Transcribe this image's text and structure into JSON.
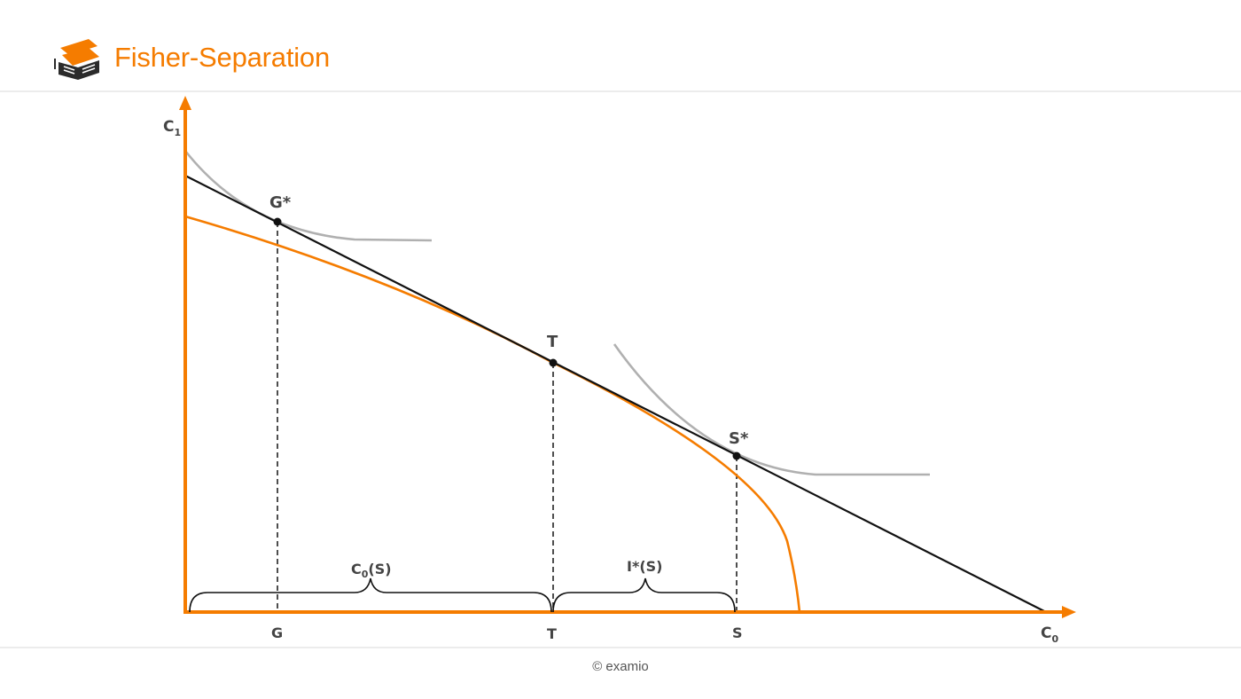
{
  "header": {
    "title": "Fisher-Separation"
  },
  "footer": {
    "copyright": "© examio"
  },
  "diagram": {
    "axis_y_label": "C",
    "axis_y_sub": "1",
    "axis_x_label": "C",
    "axis_x_sub": "0",
    "points": {
      "g_star": "G*",
      "t_point": "T",
      "s_star": "S*"
    },
    "ticks": {
      "g": "G",
      "t": "T",
      "s": "S"
    },
    "braces": {
      "c0_base": "C",
      "c0_sub": "0",
      "c0_rest": "(S)",
      "i_star": "I*(S)"
    },
    "colors": {
      "accent": "#f57c00",
      "line": "#111111",
      "indifference": "#b0b0b0"
    }
  }
}
